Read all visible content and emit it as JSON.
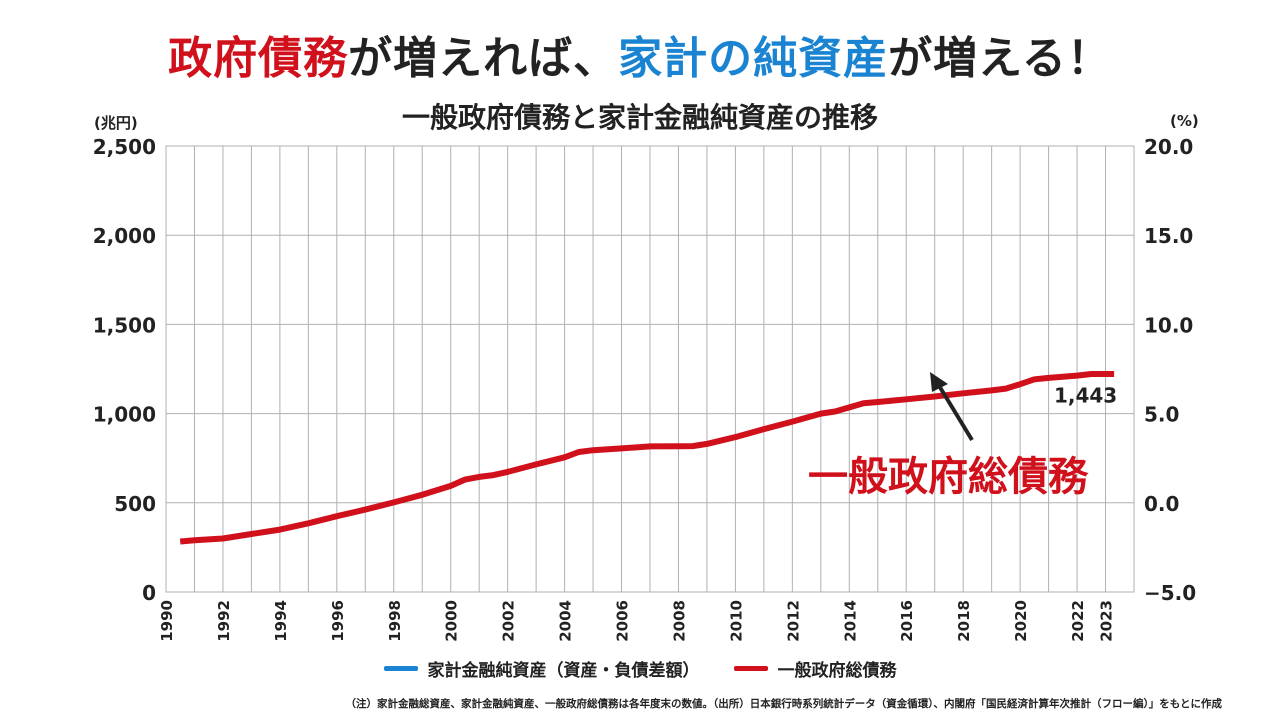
{
  "headline": {
    "part1": "政府債務",
    "part2": "が増えれば、",
    "part3": "家計の純資産",
    "part4": "が増える！"
  },
  "subtitle": "一般政府債務と家計金融純資産の推移",
  "units": {
    "left": "(兆円)",
    "right": "(%)"
  },
  "annotation": {
    "big_label": "一般政府総債務"
  },
  "legend": [
    {
      "label": "家計金融純資産（資産・負債差額）",
      "color": "#1a84d2"
    },
    {
      "label": "一般政府総債務",
      "color": "#d0101b"
    }
  ],
  "footnote": "（注）家計金融総資産、家計金融純資産、一般政府総債務は各年度末の数値。（出所）日本銀行時系列統計データ（資金循環）、内閣府「国民経済計算年次推計（フロー編）」をもとに作成",
  "colors": {
    "debt": "#d0101b",
    "assets": "#1a84d2",
    "grid": "#b0b0b0"
  },
  "chart_data": {
    "type": "line",
    "x_tick_labels": [
      "1990",
      "1992",
      "1994",
      "1996",
      "1998",
      "2000",
      "2002",
      "2004",
      "2006",
      "2008",
      "2010",
      "2012",
      "2014",
      "2016",
      "2018",
      "2020",
      "2022",
      "2023"
    ],
    "ylim": [
      0,
      2500
    ],
    "yticks": [
      0,
      500,
      1000,
      1500,
      2000,
      2500
    ],
    "ytick_labels": [
      "0",
      "500",
      "1,000",
      "1,500",
      "2,000",
      "2,500"
    ],
    "y2lim": [
      -5.0,
      20.0
    ],
    "y2ticks": [
      -5.0,
      0.0,
      5.0,
      10.0,
      15.0,
      20.0
    ],
    "y2tick_labels": [
      "−5.0",
      "0.0",
      "5.0",
      "10.0",
      "15.0",
      "20.0"
    ],
    "grid": true,
    "legend_position": "bottom",
    "series": [
      {
        "name": "一般政府総債務",
        "color": "#d0101b",
        "x": [
          1990.5,
          1991,
          1992,
          1993,
          1994,
          1995,
          1996,
          1997,
          1998,
          1999,
          2000,
          2000.5,
          2001,
          2001.5,
          2002,
          2003,
          2004,
          2004.5,
          2005,
          2006,
          2007,
          2008,
          2008.5,
          2009,
          2010,
          2011,
          2012,
          2013,
          2013.5,
          2014,
          2014.5,
          2015,
          2016,
          2017,
          2018,
          2019,
          2019.5,
          2020,
          2020.5,
          2021,
          2022,
          2022.5,
          2023.3
        ],
        "values": [
          283,
          290,
          300,
          325,
          350,
          385,
          425,
          462,
          502,
          545,
          595,
          630,
          645,
          655,
          673,
          715,
          755,
          785,
          795,
          805,
          816,
          817,
          818,
          830,
          868,
          913,
          955,
          1000,
          1012,
          1035,
          1058,
          1065,
          1080,
          1096,
          1114,
          1130,
          1140,
          1165,
          1192,
          1200,
          1213,
          1222,
          1222
        ]
      }
    ],
    "annotations": [
      {
        "text": "1,443",
        "x": 2022.3,
        "y": 1130
      }
    ]
  }
}
